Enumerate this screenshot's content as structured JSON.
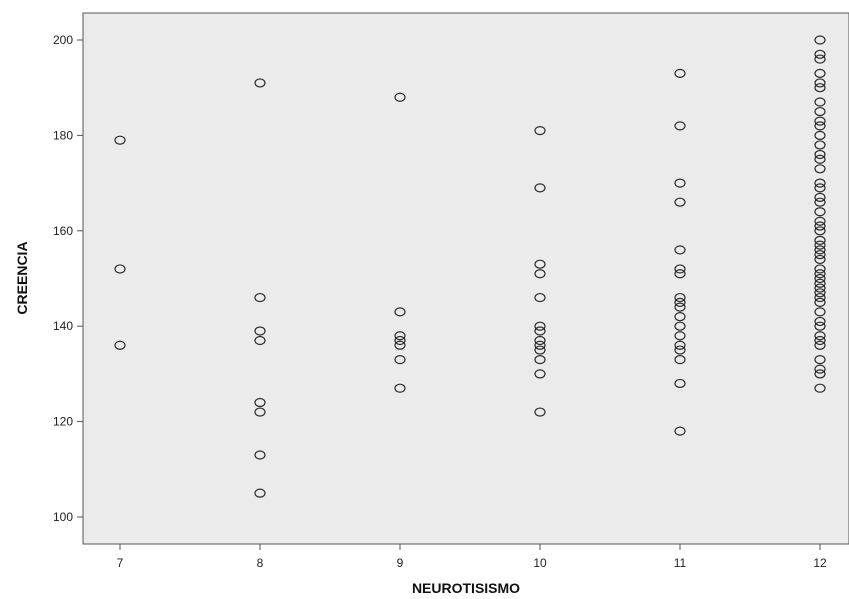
{
  "chart_data": {
    "type": "scatter",
    "title": "",
    "xlabel": "NEUROTISISMO",
    "ylabel": "CREENCIA",
    "xticks": [
      7,
      8,
      9,
      10,
      11,
      12
    ],
    "yticks": [
      100,
      120,
      140,
      160,
      180,
      200
    ],
    "xlim": [
      6.75,
      12.2
    ],
    "ylim": [
      96,
      205
    ],
    "grid": false,
    "legend": "none",
    "plot_background": "#ebebeb",
    "marker_color": "#2b2b2b",
    "series": [
      {
        "points": [
          {
            "x": 7,
            "y": 179
          },
          {
            "x": 7,
            "y": 152
          },
          {
            "x": 7,
            "y": 136
          },
          {
            "x": 8,
            "y": 191
          },
          {
            "x": 8,
            "y": 146
          },
          {
            "x": 8,
            "y": 139
          },
          {
            "x": 8,
            "y": 137
          },
          {
            "x": 8,
            "y": 124
          },
          {
            "x": 8,
            "y": 122
          },
          {
            "x": 8,
            "y": 113
          },
          {
            "x": 8,
            "y": 105
          },
          {
            "x": 9,
            "y": 188
          },
          {
            "x": 9,
            "y": 143
          },
          {
            "x": 9,
            "y": 138
          },
          {
            "x": 9,
            "y": 137
          },
          {
            "x": 9,
            "y": 136
          },
          {
            "x": 9,
            "y": 133
          },
          {
            "x": 9,
            "y": 127
          },
          {
            "x": 10,
            "y": 181
          },
          {
            "x": 10,
            "y": 169
          },
          {
            "x": 10,
            "y": 153
          },
          {
            "x": 10,
            "y": 151
          },
          {
            "x": 10,
            "y": 146
          },
          {
            "x": 10,
            "y": 140
          },
          {
            "x": 10,
            "y": 139
          },
          {
            "x": 10,
            "y": 137
          },
          {
            "x": 10,
            "y": 136
          },
          {
            "x": 10,
            "y": 135
          },
          {
            "x": 10,
            "y": 133
          },
          {
            "x": 10,
            "y": 130
          },
          {
            "x": 10,
            "y": 122
          },
          {
            "x": 11,
            "y": 193
          },
          {
            "x": 11,
            "y": 182
          },
          {
            "x": 11,
            "y": 170
          },
          {
            "x": 11,
            "y": 166
          },
          {
            "x": 11,
            "y": 156
          },
          {
            "x": 11,
            "y": 152
          },
          {
            "x": 11,
            "y": 151
          },
          {
            "x": 11,
            "y": 146
          },
          {
            "x": 11,
            "y": 145
          },
          {
            "x": 11,
            "y": 144
          },
          {
            "x": 11,
            "y": 142
          },
          {
            "x": 11,
            "y": 140
          },
          {
            "x": 11,
            "y": 138
          },
          {
            "x": 11,
            "y": 136
          },
          {
            "x": 11,
            "y": 135
          },
          {
            "x": 11,
            "y": 133
          },
          {
            "x": 11,
            "y": 128
          },
          {
            "x": 11,
            "y": 118
          },
          {
            "x": 12,
            "y": 200
          },
          {
            "x": 12,
            "y": 197
          },
          {
            "x": 12,
            "y": 196
          },
          {
            "x": 12,
            "y": 193
          },
          {
            "x": 12,
            "y": 191
          },
          {
            "x": 12,
            "y": 190
          },
          {
            "x": 12,
            "y": 187
          },
          {
            "x": 12,
            "y": 185
          },
          {
            "x": 12,
            "y": 183
          },
          {
            "x": 12,
            "y": 182
          },
          {
            "x": 12,
            "y": 180
          },
          {
            "x": 12,
            "y": 178
          },
          {
            "x": 12,
            "y": 176
          },
          {
            "x": 12,
            "y": 175
          },
          {
            "x": 12,
            "y": 173
          },
          {
            "x": 12,
            "y": 170
          },
          {
            "x": 12,
            "y": 169
          },
          {
            "x": 12,
            "y": 167
          },
          {
            "x": 12,
            "y": 166
          },
          {
            "x": 12,
            "y": 164
          },
          {
            "x": 12,
            "y": 162
          },
          {
            "x": 12,
            "y": 161
          },
          {
            "x": 12,
            "y": 160
          },
          {
            "x": 12,
            "y": 158
          },
          {
            "x": 12,
            "y": 157
          },
          {
            "x": 12,
            "y": 156
          },
          {
            "x": 12,
            "y": 155
          },
          {
            "x": 12,
            "y": 154
          },
          {
            "x": 12,
            "y": 152
          },
          {
            "x": 12,
            "y": 151
          },
          {
            "x": 12,
            "y": 150
          },
          {
            "x": 12,
            "y": 149
          },
          {
            "x": 12,
            "y": 148
          },
          {
            "x": 12,
            "y": 147
          },
          {
            "x": 12,
            "y": 146
          },
          {
            "x": 12,
            "y": 145
          },
          {
            "x": 12,
            "y": 143
          },
          {
            "x": 12,
            "y": 141
          },
          {
            "x": 12,
            "y": 140
          },
          {
            "x": 12,
            "y": 138
          },
          {
            "x": 12,
            "y": 137
          },
          {
            "x": 12,
            "y": 136
          },
          {
            "x": 12,
            "y": 133
          },
          {
            "x": 12,
            "y": 131
          },
          {
            "x": 12,
            "y": 130
          },
          {
            "x": 12,
            "y": 127
          }
        ]
      }
    ]
  }
}
